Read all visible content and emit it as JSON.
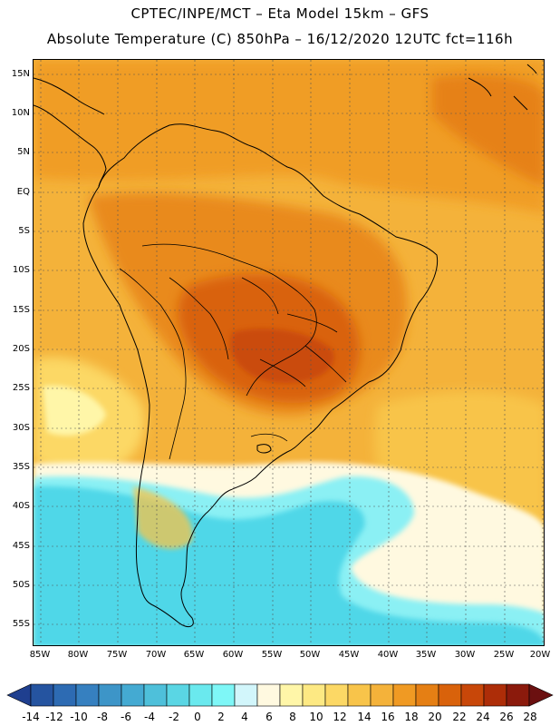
{
  "title_line1": "CPTEC/INPE/MCT –  Eta Model 15km – GFS",
  "title_line2": "Absolute Temperature (C) 850hPa – 16/12/2020 12UTC fct=116h",
  "map": {
    "lat_labels": [
      "15N",
      "10N",
      "5N",
      "EQ",
      "5S",
      "10S",
      "15S",
      "20S",
      "25S",
      "30S",
      "35S",
      "40S",
      "45S",
      "50S",
      "55S"
    ],
    "lon_labels": [
      "85W",
      "80W",
      "75W",
      "70W",
      "65W",
      "60W",
      "55W",
      "50W",
      "45W",
      "40W",
      "35W",
      "30W",
      "25W",
      "20W"
    ]
  },
  "colorbar": {
    "tick_labels": [
      "-14",
      "-12",
      "-10",
      "-8",
      "-6",
      "-4",
      "-2",
      "0",
      "2",
      "4",
      "6",
      "8",
      "10",
      "12",
      "14",
      "16",
      "18",
      "20",
      "22",
      "24",
      "26",
      "28"
    ],
    "colors": [
      "#1f3f8f",
      "#2554a0",
      "#2d6bb3",
      "#3680c0",
      "#3d95c8",
      "#44aad2",
      "#4ec0da",
      "#5ad6e4",
      "#6ae9ee",
      "#7ef7f7",
      "#d2f6fb",
      "#fff9e0",
      "#fff6a8",
      "#fde983",
      "#fcd865",
      "#f8c44a",
      "#f4b23a",
      "#f09a23",
      "#e57f14",
      "#d9620b",
      "#c84709",
      "#ad2d08",
      "#8b1a0c",
      "#6b1010"
    ]
  },
  "colors": {
    "warm_ocean": "#f2b332",
    "hot_core": "#d9620b",
    "cold_water": "#4fd7e8",
    "cold_shelf": "#8bf0f4"
  }
}
